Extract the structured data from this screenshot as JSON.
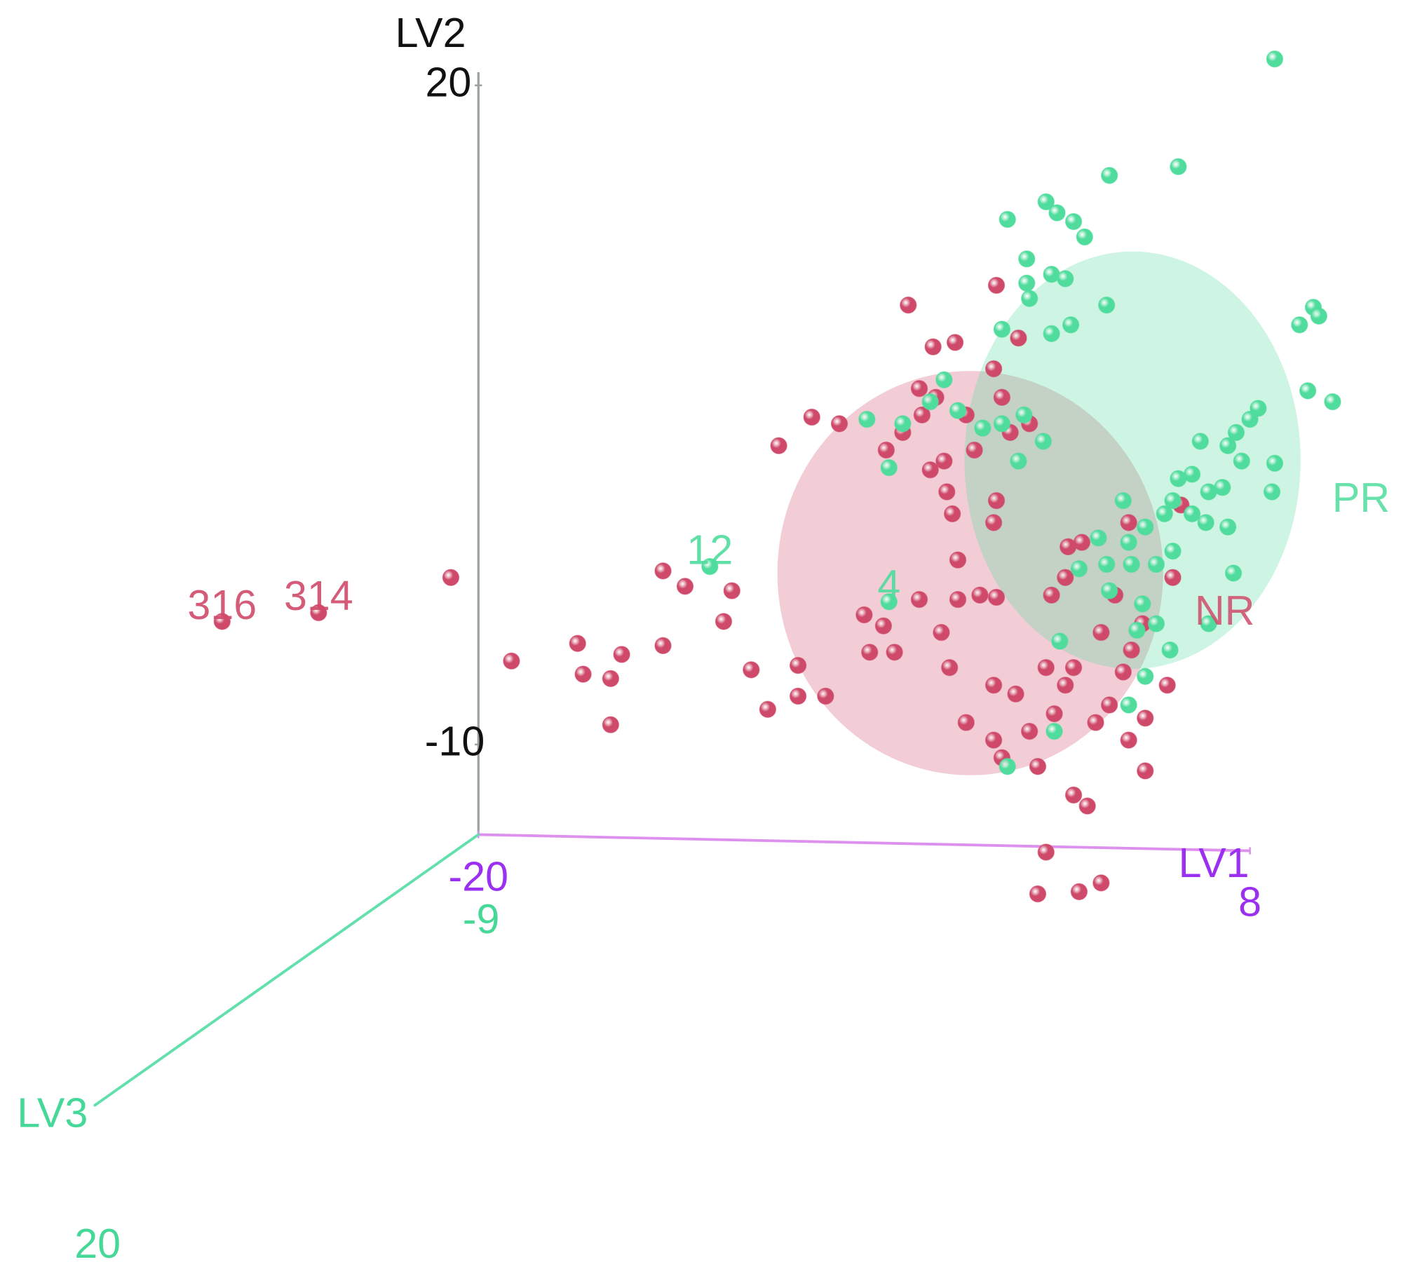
{
  "chart_data": {
    "type": "scatter3d",
    "x_label": "LV1",
    "y_label": "LV2",
    "z_label": "LV3",
    "xlim": [
      -20,
      8
    ],
    "ylim": [
      -14.1,
      20.6
    ],
    "zlim": [
      -9,
      20
    ],
    "xticks": [
      -20,
      8
    ],
    "yticks": [
      -10,
      20
    ],
    "zticks": [
      -9,
      20
    ],
    "axis_colors": {
      "x": "#9b30f0",
      "y": "#111111",
      "z": "#45d898"
    },
    "series": [
      {
        "name": "NR",
        "color": "#cf4a6a",
        "ellipse": {
          "cx": -2.15,
          "cy": -2.2,
          "rx": 7.0,
          "ry": 9.2
        },
        "x": [
          -29.3,
          -25.8,
          -21.0,
          -18.8,
          -16.4,
          -16.2,
          -15.2,
          -14.8,
          -15.2,
          -13.3,
          -13.3,
          -12.5,
          -10.8,
          -11.1,
          -10.1,
          -9.5,
          -8.4,
          -8.4,
          -7.4,
          -9.1,
          -7.9,
          -6.9,
          -6.0,
          -5.8,
          -4.9,
          -5.3,
          -4.4,
          -3.5,
          -2.7,
          -1.2,
          -0.4,
          -4.6,
          -3.6,
          -3.0,
          -4.0,
          -1.3,
          -1.0,
          -2.0,
          -2.8,
          -1.3,
          -2.6,
          -4.0,
          -2.6,
          -1.8,
          -1.2,
          -3.2,
          -2.9,
          -2.3,
          -1.3,
          -1.3,
          -1.0,
          0.0,
          -0.5,
          0.6,
          0.9,
          0.3,
          1.6,
          2.1,
          0.6,
          0.3,
          1.8,
          2.6,
          1.3,
          0.8,
          1.9,
          3.1,
          2.6,
          3.4,
          2.9,
          2.4,
          4.2,
          4.2,
          5.0,
          3.7,
          1.6,
          4.1,
          5.2,
          5.5,
          3.6,
          1.4,
          -3.9,
          -5.2,
          -3.4,
          -2.3,
          -0.7,
          0.0,
          -1.2,
          -3.1,
          1.3,
          3.6
        ],
        "y": [
          -4.4,
          -4.0,
          -2.4,
          -6.2,
          -5.4,
          -6.8,
          -7.0,
          -5.9,
          -9.1,
          -5.5,
          -2.1,
          -2.8,
          -3.0,
          -4.4,
          -6.6,
          -8.4,
          -6.4,
          -7.8,
          -7.8,
          3.6,
          4.9,
          4.6,
          -4.1,
          -5.8,
          -5.8,
          -4.6,
          10.0,
          8.1,
          8.3,
          10.9,
          8.5,
          4.2,
          2.5,
          1.5,
          6.2,
          7.1,
          5.8,
          3.4,
          0.5,
          0.1,
          -1.6,
          -3.4,
          -3.4,
          -3.2,
          -3.3,
          -4.9,
          -6.5,
          -9.0,
          -7.3,
          -9.8,
          -10.6,
          -9.4,
          -7.7,
          -6.5,
          -8.6,
          -11.0,
          -12.3,
          -12.8,
          -14.9,
          -16.8,
          -16.7,
          -16.3,
          -2.4,
          -3.2,
          -0.8,
          -3.2,
          -4.9,
          -6.7,
          -8.2,
          -9.0,
          -8.8,
          -11.2,
          -7.3,
          -5.7,
          -6.5,
          -4.5,
          -2.4,
          0.9,
          0.1,
          -1.0,
          5.0,
          3.4,
          5.8,
          5.0,
          4.2,
          4.6,
          1.1,
          2.9,
          -7.3,
          -9.8
        ],
        "annotations": [
          {
            "text": "316",
            "x": -29.3,
            "y": -4.4
          },
          {
            "text": "314",
            "x": -25.8,
            "y": -4.0
          }
        ]
      },
      {
        "name": "PR",
        "color": "#4fdc9c",
        "ellipse": {
          "cx": 3.74,
          "cy": 2.94,
          "rx": 6.1,
          "ry": 9.5
        },
        "x": [
          8.9,
          5.4,
          2.9,
          0.6,
          1.0,
          1.6,
          2.0,
          -0.8,
          -0.1,
          -0.1,
          0.8,
          1.3,
          0.0,
          1.5,
          0.8,
          -1.0,
          2.8,
          9.8,
          10.3,
          10.5,
          10.1,
          11.0,
          8.3,
          8.0,
          7.5,
          7.2,
          7.7,
          8.9,
          8.8,
          6.2,
          5.9,
          6.5,
          7.0,
          5.4,
          5.2,
          4.9,
          5.9,
          6.4,
          7.2,
          4.2,
          3.4,
          3.6,
          4.6,
          5.2,
          3.7,
          2.8,
          2.5,
          1.8,
          7.4,
          4.1,
          4.6,
          3.9,
          5.1,
          6.5,
          2.9,
          4.2,
          3.6,
          1.1,
          0.9,
          -0.8,
          -5.1,
          -11.6,
          -5.9,
          -4.6,
          -5.1,
          -3.1,
          -2.6,
          -1.7,
          -1.0,
          -0.2,
          0.5,
          -0.4,
          -3.6
        ],
        "y": [
          21.2,
          16.3,
          15.9,
          14.7,
          14.2,
          13.8,
          13.1,
          13.9,
          12.1,
          11.0,
          11.4,
          11.2,
          10.3,
          9.1,
          8.7,
          8.9,
          10.0,
          9.1,
          9.9,
          9.5,
          6.1,
          5.6,
          5.3,
          4.8,
          4.2,
          3.6,
          2.9,
          2.8,
          1.5,
          3.8,
          2.3,
          1.5,
          1.7,
          2.1,
          1.1,
          0.5,
          0.5,
          0.1,
          -0.1,
          -0.1,
          1.1,
          -0.8,
          -1.8,
          -1.2,
          -1.8,
          -1.8,
          -0.6,
          -2.0,
          -2.2,
          -3.6,
          -4.5,
          -4.8,
          -5.7,
          -4.5,
          -3.0,
          -6.9,
          -8.2,
          -5.3,
          -9.4,
          -11.0,
          -3.5,
          -1.9,
          4.8,
          4.6,
          2.6,
          6.6,
          5.2,
          4.4,
          4.6,
          5.0,
          3.8,
          2.9,
          5.6
        ],
        "annotations": [
          {
            "text": "12",
            "x": -11.6,
            "y": -1.9
          },
          {
            "text": "4",
            "x": -5.1,
            "y": -3.5
          }
        ]
      }
    ]
  }
}
